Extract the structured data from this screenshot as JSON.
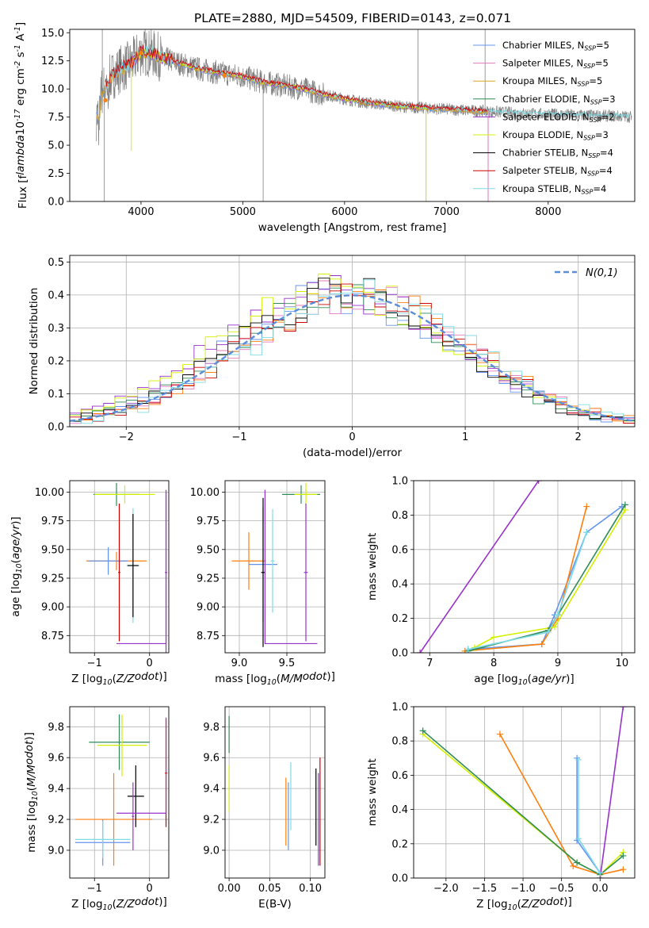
{
  "chart_data": [
    {
      "id": "spectrum",
      "type": "line",
      "title": "PLATE=2880, MJD=54509, FIBERID=0143, z=0.071",
      "xlabel": "wavelength [Angstrom, rest frame]",
      "ylabel": "Flux [f$_\\lambda$10$^{-17}$ erg cm$^{-2}$ s$^{-1}$ A$^{-1}$]",
      "xlim": [
        3300,
        8850
      ],
      "ylim": [
        0,
        15.3
      ],
      "xticks": [
        4000,
        5000,
        6000,
        7000,
        8000
      ],
      "yticks": [
        0.0,
        2.5,
        5.0,
        7.5,
        10.0,
        12.5,
        15.0
      ],
      "legend_position": "upper right",
      "legend": [
        "Chabrier MILES, N$_{SSP}$=5",
        "Salpeter MILES, N$_{SSP}$=5",
        "Kroupa MILES, N$_{SSP}$=5",
        "Chabrier ELODIE, N$_{SSP}$=3",
        "Salpeter ELODIE, N$_{SSP}$=2",
        "Kroupa ELODIE, N$_{SSP}$=3",
        "Chabrier STELIB, N$_{SSP}$=4",
        "Salpeter STELIB, N$_{SSP}$=4",
        "Kroupa STELIB, N$_{SSP}$=4"
      ],
      "continuum_anchors": {
        "x": [
          3600,
          3700,
          3800,
          3900,
          4000,
          4100,
          4200,
          4400,
          4600,
          4800,
          5000,
          5200,
          5400,
          5600,
          5800,
          6000,
          6200,
          6400,
          6600,
          6800,
          7000,
          7200,
          7400,
          7600,
          7800,
          8000,
          8200,
          8400,
          8600,
          8800
        ],
        "y": [
          9.5,
          11.0,
          11.8,
          12.2,
          13.3,
          13.2,
          12.8,
          12.2,
          11.7,
          11.4,
          11.1,
          10.6,
          10.3,
          10.0,
          9.5,
          9.1,
          8.8,
          8.6,
          8.4,
          8.3,
          8.2,
          8.1,
          8.0,
          7.9,
          7.8,
          7.75,
          7.7,
          7.65,
          7.6,
          7.55
        ]
      }
    },
    {
      "id": "residuals",
      "type": "line",
      "xlabel": "(data-model)/error",
      "ylabel": "Normed distribution",
      "xlim": [
        -2.5,
        2.5
      ],
      "ylim": [
        0,
        0.52
      ],
      "xticks": [
        -2,
        -1,
        0,
        1,
        2
      ],
      "yticks": [
        0.0,
        0.1,
        0.2,
        0.3,
        0.4,
        0.5
      ],
      "grid": true,
      "legend_position": "upper right",
      "legend": [
        "$\\mathcal{N}(0,1)$"
      ],
      "normal_reference": {
        "mean": 0,
        "sigma": 1
      }
    },
    {
      "id": "age-vs-Z",
      "type": "scatter",
      "xlabel": "Z [log$_{10}$($Z/Z_\\odot$)]",
      "ylabel": "age  [log$_{10}$($age/yr$)]",
      "xlim": [
        -1.45,
        0.35
      ],
      "ylim": [
        8.6,
        10.1
      ],
      "xticks": [
        -1,
        0
      ],
      "yticks": [
        8.75,
        9.0,
        9.25,
        9.5,
        9.75,
        10.0
      ],
      "grid": true,
      "errorbars": [
        {
          "x": -0.6,
          "y": 9.98,
          "xerr": 0.42,
          "yerr": 0.1
        },
        {
          "x": -0.45,
          "y": 9.98,
          "xerr": 0.55,
          "yerr": 0.08
        },
        {
          "x": -0.6,
          "y": 9.4,
          "xerr": 0.55,
          "yerr": 0.08
        },
        {
          "x": -0.75,
          "y": 9.4,
          "xerr": 0.35,
          "yerr": 0.12
        },
        {
          "x": -0.3,
          "y": 9.36,
          "xerr": 0.12,
          "yerr": 0.5
        },
        {
          "x": -0.3,
          "y": 9.36,
          "xerr": 0.1,
          "yerr": 0.45
        },
        {
          "x": 0.3,
          "y": 9.3,
          "xerr": 0.02,
          "yerr": 0.7
        },
        {
          "x": -0.55,
          "y": 9.3,
          "xerr": 0.02,
          "yerr": 0.6
        }
      ]
    },
    {
      "id": "age-vs-mass",
      "type": "scatter",
      "xlabel": "mass [log$_{10}$($M/M_\\odot$)]",
      "ylabel": "",
      "xlim": [
        8.85,
        9.9
      ],
      "ylim": [
        8.6,
        10.1
      ],
      "xticks": [
        9.0,
        9.5
      ],
      "yticks": [
        8.75,
        9.0,
        9.25,
        9.5,
        9.75,
        10.0
      ],
      "grid": true,
      "errorbars": [
        {
          "x": 9.65,
          "y": 9.98,
          "xerr": 0.2,
          "yerr": 0.08
        },
        {
          "x": 9.7,
          "y": 9.98,
          "xerr": 0.12,
          "yerr": 0.1
        },
        {
          "x": 9.1,
          "y": 9.4,
          "xerr": 0.18,
          "yerr": 0.25
        },
        {
          "x": 9.25,
          "y": 9.37,
          "xerr": 0.15,
          "yerr": 0.5
        },
        {
          "x": 9.35,
          "y": 9.4,
          "xerr": 0.02,
          "yerr": 0.45
        },
        {
          "x": 9.25,
          "y": 9.3,
          "xerr": 0.02,
          "yerr": 0.65
        },
        {
          "x": 9.7,
          "y": 9.3,
          "xerr": 0.02,
          "yerr": 0.6
        }
      ]
    },
    {
      "id": "weight-vs-age",
      "type": "line",
      "xlabel": "age  [log$_{10}$($age/yr$)]",
      "ylabel": "mass weight",
      "xlim": [
        6.75,
        10.2
      ],
      "ylim": [
        0,
        1.0
      ],
      "xticks": [
        7,
        8,
        9,
        10
      ],
      "yticks": [
        0.0,
        0.2,
        0.4,
        0.6,
        0.8,
        1.0
      ],
      "grid": true,
      "series": [
        {
          "color": "#6495ed",
          "x": [
            7.6,
            8.75,
            8.95,
            9.45,
            10.0
          ],
          "y": [
            0.02,
            0.05,
            0.22,
            0.7,
            0.85
          ]
        },
        {
          "color": "#ff7f0e",
          "x": [
            7.55,
            8.75,
            9.0,
            9.45
          ],
          "y": [
            0.01,
            0.05,
            0.2,
            0.85
          ]
        },
        {
          "color": "#9932cc",
          "x": [
            6.85,
            8.7
          ],
          "y": [
            0.0,
            1.0
          ]
        },
        {
          "color": "#d4f000",
          "x": [
            7.7,
            8.0,
            8.95,
            10.05
          ],
          "y": [
            0.03,
            0.09,
            0.15,
            0.83
          ]
        },
        {
          "color": "#2e8b57",
          "x": [
            7.6,
            8.85,
            9.0,
            10.05
          ],
          "y": [
            0.01,
            0.13,
            0.22,
            0.86
          ]
        },
        {
          "color": "#7fdbe6",
          "x": [
            7.6,
            8.85,
            9.0,
            9.45
          ],
          "y": [
            0.02,
            0.12,
            0.22,
            0.7
          ]
        }
      ]
    },
    {
      "id": "mass-vs-Z",
      "type": "scatter",
      "xlabel": "Z [log$_{10}$($Z/Z_\\odot$)]",
      "ylabel": "mass [log$_{10}$($M/M_\\odot$)]",
      "xlim": [
        -1.45,
        0.35
      ],
      "ylim": [
        8.82,
        9.93
      ],
      "xticks": [
        -1,
        0
      ],
      "yticks": [
        9.0,
        9.2,
        9.4,
        9.6,
        9.8
      ],
      "grid": true,
      "errorbars": [
        {
          "x": -0.55,
          "y": 9.7,
          "xerr": 0.55,
          "yerr": 0.18
        },
        {
          "x": -0.5,
          "y": 9.68,
          "xerr": 0.45,
          "yerr": 0.2
        },
        {
          "x": -0.65,
          "y": 9.2,
          "xerr": 0.7,
          "yerr": 0.3
        },
        {
          "x": -0.85,
          "y": 9.05,
          "xerr": 0.5,
          "yerr": 0.15
        },
        {
          "x": -0.85,
          "y": 9.07,
          "xerr": 0.5,
          "yerr": 0.12
        },
        {
          "x": -0.25,
          "y": 9.35,
          "xerr": 0.15,
          "yerr": 0.2
        },
        {
          "x": -0.3,
          "y": 9.22,
          "xerr": 0.02,
          "yerr": 0.22
        },
        {
          "x": 0.3,
          "y": 9.5,
          "xerr": 0.02,
          "yerr": 0.35
        }
      ]
    },
    {
      "id": "mass-vs-ebv",
      "type": "scatter",
      "xlabel": "E(B-V)",
      "ylabel": "",
      "xlim": [
        -0.005,
        0.118
      ],
      "ylim": [
        8.82,
        9.93
      ],
      "xticks": [
        0.0,
        0.05,
        0.1
      ],
      "yticks": [
        9.0,
        9.2,
        9.4,
        9.6,
        9.8
      ],
      "grid": true,
      "errorbars": [
        {
          "x": 0.0,
          "y": 9.75,
          "yerr": 0.12
        },
        {
          "x": 0.0,
          "y": 9.4,
          "yerr": 0.15
        },
        {
          "x": 0.07,
          "y": 9.25,
          "yerr": 0.22
        },
        {
          "x": 0.073,
          "y": 9.22,
          "yerr": 0.22
        },
        {
          "x": 0.076,
          "y": 9.35,
          "yerr": 0.22
        },
        {
          "x": 0.107,
          "y": 9.28,
          "yerr": 0.25
        },
        {
          "x": 0.11,
          "y": 9.2,
          "yerr": 0.3
        },
        {
          "x": 0.112,
          "y": 9.25,
          "yerr": 0.35
        }
      ]
    },
    {
      "id": "weight-vs-Z",
      "type": "line",
      "xlabel": "Z [log$_{10}$($Z/Z_\\odot$)]",
      "ylabel": "mass weight",
      "xlim": [
        -2.42,
        0.45
      ],
      "ylim": [
        0,
        1.0
      ],
      "xticks": [
        -2.0,
        -1.5,
        -1.0,
        -0.5,
        0.0
      ],
      "yticks": [
        0.0,
        0.2,
        0.4,
        0.6,
        0.8,
        1.0
      ],
      "grid": true,
      "series": [
        {
          "color": "#ff7f0e",
          "x": [
            -1.3,
            -0.35,
            0.0,
            0.3
          ],
          "y": [
            0.84,
            0.07,
            0.02,
            0.05
          ]
        },
        {
          "color": "#9932cc",
          "x": [
            0.0,
            0.3
          ],
          "y": [
            0.0,
            1.0
          ]
        },
        {
          "color": "#d4f000",
          "x": [
            -2.3,
            -0.3,
            0.0,
            0.3
          ],
          "y": [
            0.84,
            0.09,
            0.02,
            0.15
          ]
        },
        {
          "color": "#2e8b57",
          "x": [
            -2.3,
            -0.3,
            0.0,
            0.3
          ],
          "y": [
            0.86,
            0.09,
            0.02,
            0.13
          ]
        },
        {
          "color": "#6495ed",
          "x": [
            -0.3,
            -0.3,
            0.0
          ],
          "y": [
            0.7,
            0.22,
            0.03
          ]
        },
        {
          "color": "#7fdbe6",
          "x": [
            -0.28,
            -0.28,
            0.0
          ],
          "y": [
            0.69,
            0.23,
            0.03
          ]
        }
      ]
    }
  ],
  "colors": {
    "Chabrier MILES": "#6495ed",
    "Salpeter MILES": "#ff7f0e",
    "Kroupa MILES": "#daa520",
    "Chabrier ELODIE": "#2e8b57",
    "Salpeter ELODIE": "#9932cc",
    "Kroupa ELODIE": "#d4f000",
    "Chabrier STELIB": "#000000",
    "Salpeter STELIB": "#cc0000",
    "Kroupa STELIB": "#7fdbe6",
    "Salpeter MILES legend": "#e377c2",
    "data": "#808080",
    "normal": "#5b8dd9",
    "grid": "#b0b0b0"
  }
}
